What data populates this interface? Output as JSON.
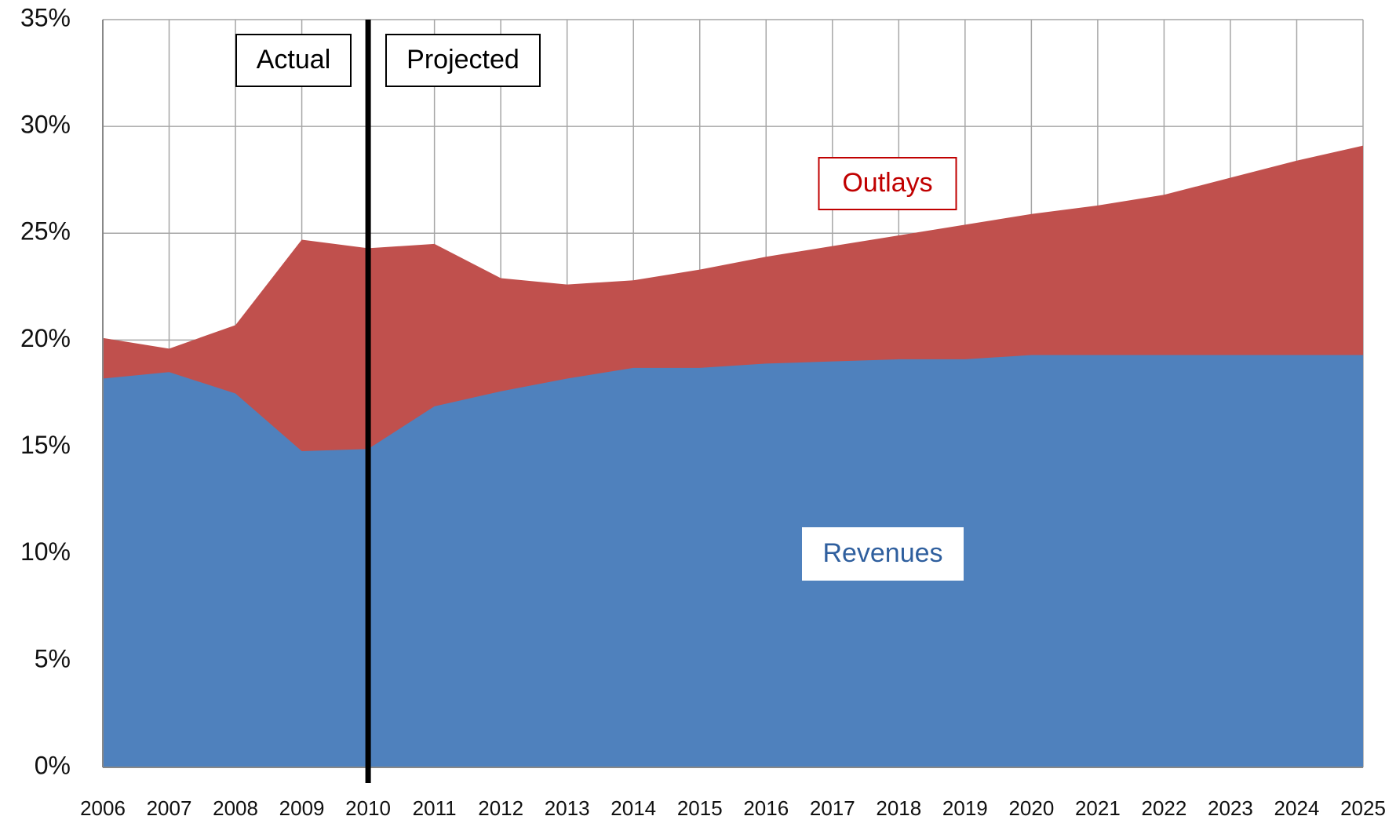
{
  "chart_data": {
    "type": "area",
    "categories": [
      "2006",
      "2007",
      "2008",
      "2009",
      "2010",
      "2011",
      "2012",
      "2013",
      "2014",
      "2015",
      "2016",
      "2017",
      "2018",
      "2019",
      "2020",
      "2021",
      "2022",
      "2023",
      "2024",
      "2025"
    ],
    "series": [
      {
        "name": "Outlays",
        "color": "#c0504d",
        "values": [
          20.1,
          19.6,
          20.7,
          24.7,
          24.3,
          24.5,
          22.9,
          22.6,
          22.8,
          23.3,
          23.9,
          24.4,
          24.9,
          25.4,
          25.9,
          26.3,
          26.8,
          27.6,
          28.4,
          29.1
        ]
      },
      {
        "name": "Revenues",
        "color": "#4f81bd",
        "values": [
          18.2,
          18.5,
          17.5,
          14.8,
          14.9,
          16.9,
          17.6,
          18.2,
          18.7,
          18.7,
          18.9,
          19.0,
          19.1,
          19.1,
          19.3,
          19.3,
          19.3,
          19.3,
          19.3,
          19.3
        ]
      }
    ],
    "annotations": [
      "Actual",
      "Projected"
    ],
    "ylim": [
      0,
      35
    ],
    "yticks": [
      {
        "value": 0,
        "label": "0%"
      },
      {
        "value": 5,
        "label": "5%"
      },
      {
        "value": 10,
        "label": "10%"
      },
      {
        "value": 15,
        "label": "15%"
      },
      {
        "value": 20,
        "label": "20%"
      },
      {
        "value": 25,
        "label": "25%"
      },
      {
        "value": 30,
        "label": "30%"
      },
      {
        "value": 35,
        "label": "35%"
      }
    ],
    "grid": true
  }
}
